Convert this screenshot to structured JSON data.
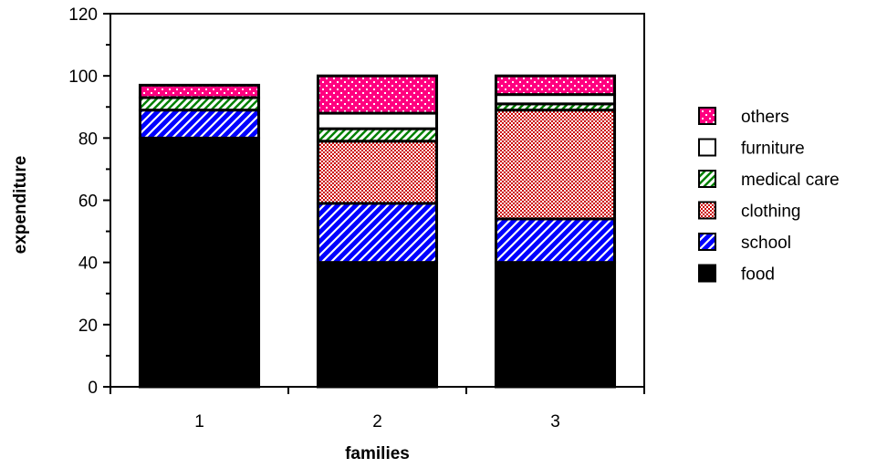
{
  "chart_data": {
    "type": "bar",
    "stacked": true,
    "categories": [
      "1",
      "2",
      "3"
    ],
    "series": [
      {
        "name": "food",
        "values": [
          80,
          40,
          40
        ],
        "color": "#000000",
        "pattern": "solid"
      },
      {
        "name": "school",
        "values": [
          9,
          19,
          14
        ],
        "color": "#0000ff",
        "pattern": "diagonal-stripes"
      },
      {
        "name": "clothing",
        "values": [
          0,
          20,
          35
        ],
        "color": "#cc0000",
        "pattern": "checker"
      },
      {
        "name": "medical care",
        "values": [
          4,
          4,
          2
        ],
        "color": "#008000",
        "pattern": "diagonal-stripes-light"
      },
      {
        "name": "furniture",
        "values": [
          0,
          5,
          3
        ],
        "color": "#ffffff",
        "pattern": "outline"
      },
      {
        "name": "others",
        "values": [
          4,
          12,
          6
        ],
        "color": "#ff0080",
        "pattern": "dots"
      }
    ],
    "legend_order": [
      "others",
      "furniture",
      "medical care",
      "clothing",
      "school",
      "food"
    ],
    "title": "",
    "xlabel": "families",
    "ylabel": "expenditure",
    "ylim": [
      0,
      120
    ],
    "yticks": [
      "0",
      "20",
      "40",
      "60",
      "80",
      "100",
      "120"
    ],
    "grid": false,
    "legend_position": "right"
  }
}
